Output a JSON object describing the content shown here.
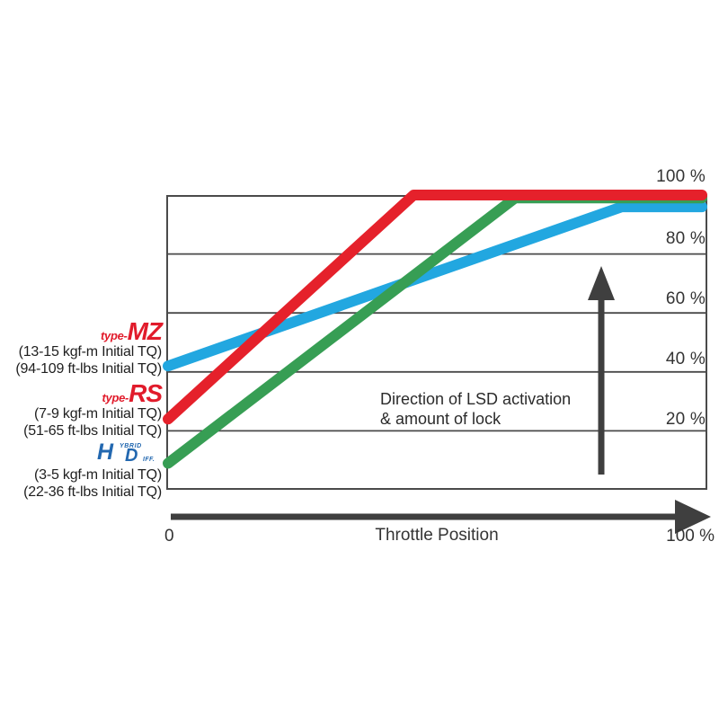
{
  "colors": {
    "series_mz_blue": "#22a7e0",
    "series_hd_green": "#379e54",
    "series_rs_red": "#e5212b",
    "grid": "#4a4a4a",
    "arrow": "#3f3f3f",
    "logo_red": "#e11b2b",
    "logo_blue": "#2368b0",
    "text": "#343434"
  },
  "chart_data": {
    "type": "line",
    "title": "",
    "xlabel": "Throttle Position",
    "ylabel": "",
    "xlim": [
      0,
      100
    ],
    "ylim": [
      0,
      100
    ],
    "grid": "horizontal",
    "legend_position": "outside-left",
    "x_tick_labels": {
      "min": "0",
      "max": "100 %"
    },
    "y_ticks": [
      {
        "value": 100,
        "label": "100 %"
      },
      {
        "value": 80,
        "label": "80 %"
      },
      {
        "value": 60,
        "label": "60 %"
      },
      {
        "value": 40,
        "label": "40 %"
      },
      {
        "value": 20,
        "label": "20 %"
      }
    ],
    "series": [
      {
        "name": "type-MZ",
        "color": "#22a7e0",
        "x": [
          0,
          85,
          100
        ],
        "y": [
          42,
          96,
          96
        ]
      },
      {
        "name": "HD hybrid diff",
        "color": "#379e54",
        "x": [
          0,
          65,
          100
        ],
        "y": [
          9,
          99,
          99
        ]
      },
      {
        "name": "type-RS",
        "color": "#e5212b",
        "x": [
          0,
          46,
          100
        ],
        "y": [
          24,
          100,
          100
        ]
      }
    ],
    "annotation": {
      "line1": "Direction of LSD activation",
      "line2": "& amount of lock"
    }
  },
  "legend": {
    "groups": [
      {
        "logo_prefix": "type-",
        "logo_name": "MZ",
        "spec1": "(13-15 kgf-m Initial TQ)",
        "spec2": "(94-109 ft-lbs Initial TQ)"
      },
      {
        "logo_prefix": "type-",
        "logo_name": "RS",
        "spec1": "(7-9 kgf-m Initial TQ)",
        "spec2": "(51-65 ft-lbs Initial TQ)"
      },
      {
        "logo": {
          "h": "H",
          "ybrid": "YBRID",
          "d": "D",
          "iff": "IFF."
        },
        "spec1": "(3-5 kgf-m Initial TQ)",
        "spec2": "(22-36 ft-lbs Initial TQ)"
      }
    ]
  }
}
